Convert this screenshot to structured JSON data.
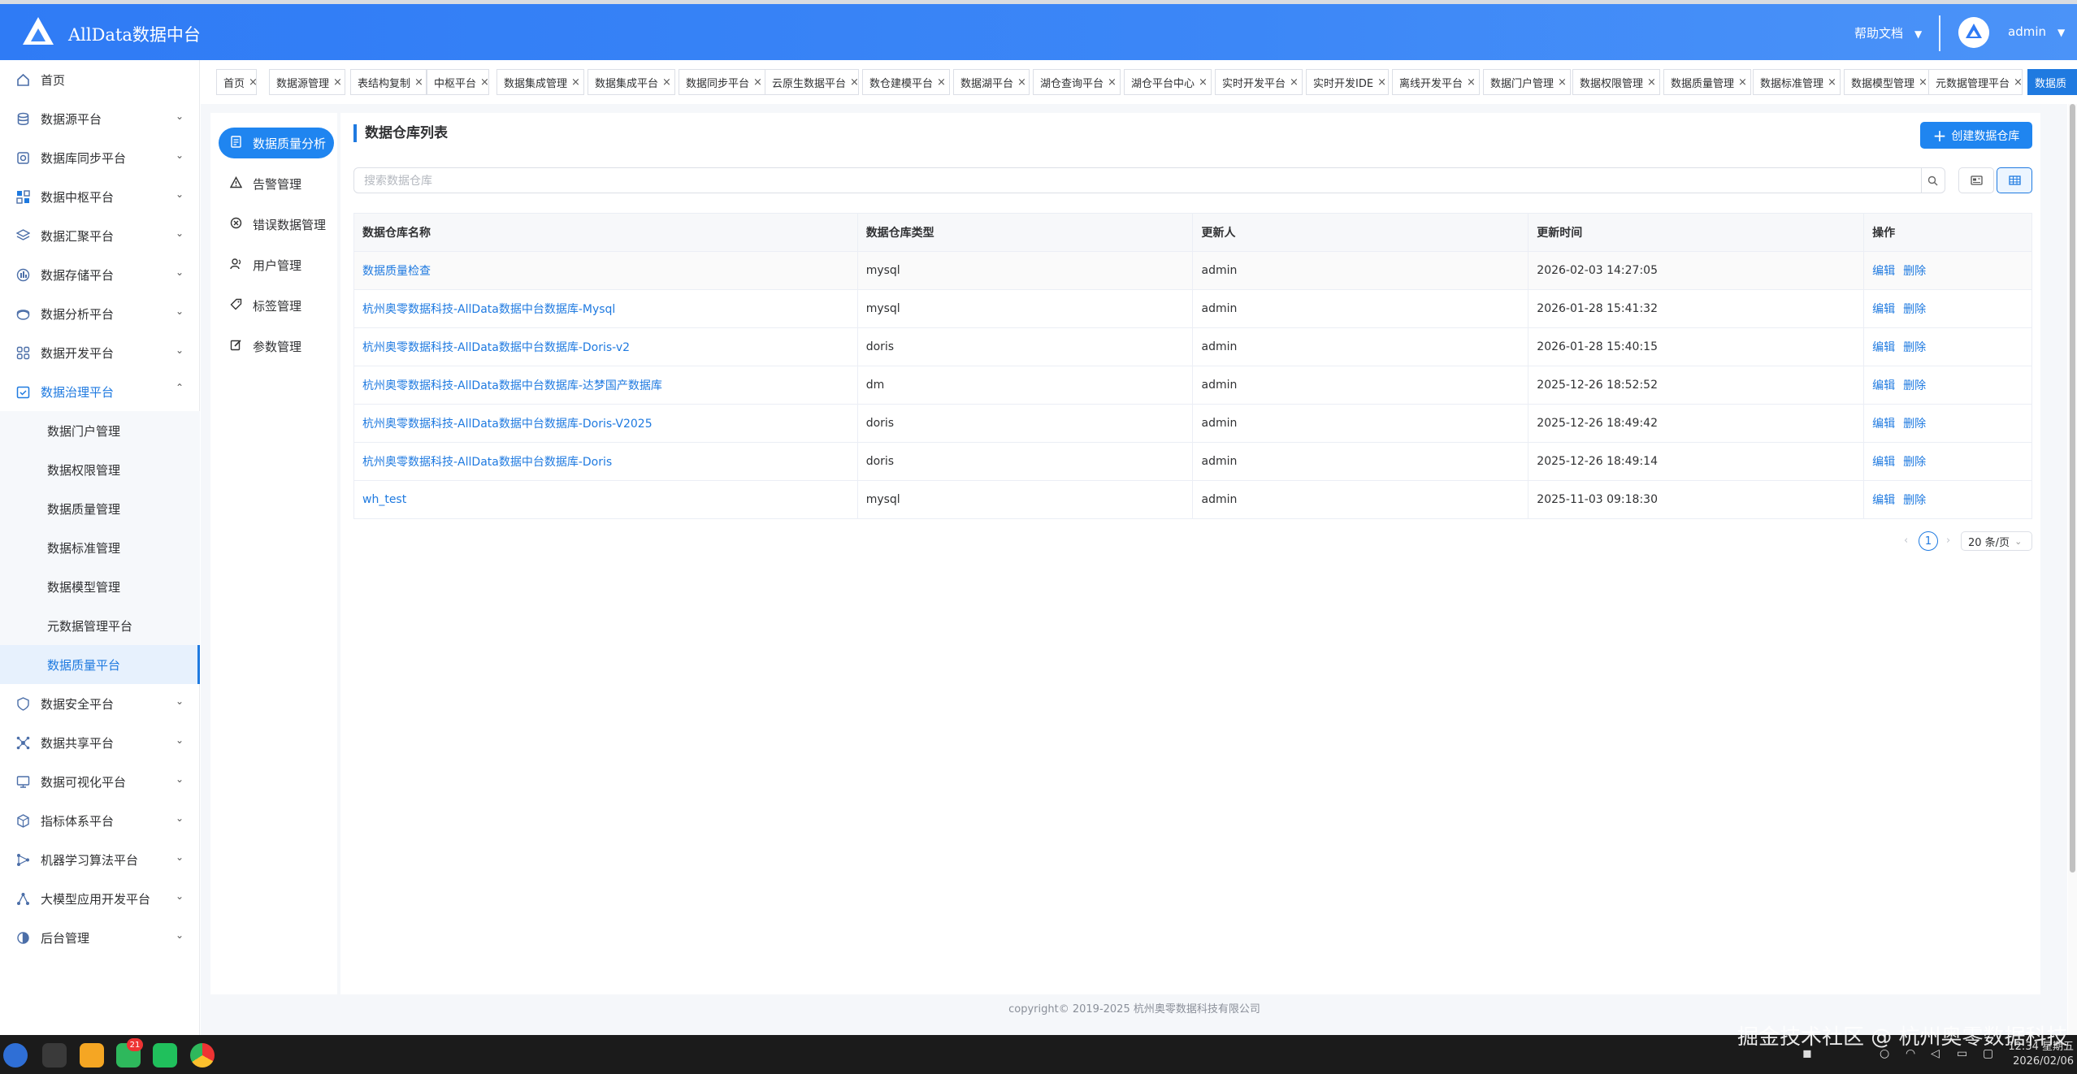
{
  "app": {
    "title": "AllData数据中台"
  },
  "header": {
    "help": "帮助文档",
    "user": "admin",
    "caret": "▼"
  },
  "sidebar": {
    "items": [
      {
        "label": "首页",
        "icon": "home-icon"
      },
      {
        "label": "数据源平台",
        "icon": "database-icon"
      },
      {
        "label": "数据库同步平台",
        "icon": "sync-icon"
      },
      {
        "label": "数据中枢平台",
        "icon": "hub-icon"
      },
      {
        "label": "数据汇聚平台",
        "icon": "layers-icon"
      },
      {
        "label": "数据存储平台",
        "icon": "storage-icon"
      },
      {
        "label": "数据分析平台",
        "icon": "analysis-icon"
      },
      {
        "label": "数据开发平台",
        "icon": "grid-icon"
      },
      {
        "label": "数据治理平台",
        "icon": "calendar-check-icon"
      }
    ],
    "sub_items": [
      {
        "label": "数据门户管理"
      },
      {
        "label": "数据权限管理"
      },
      {
        "label": "数据质量管理"
      },
      {
        "label": "数据标准管理"
      },
      {
        "label": "数据模型管理"
      },
      {
        "label": "元数据管理平台"
      },
      {
        "label": "数据质量平台"
      }
    ],
    "items_after": [
      {
        "label": "数据安全平台",
        "icon": "shield-icon"
      },
      {
        "label": "数据共享平台",
        "icon": "share-icon"
      },
      {
        "label": "数据可视化平台",
        "icon": "monitor-icon"
      },
      {
        "label": "指标体系平台",
        "icon": "cube-icon"
      },
      {
        "label": "机器学习算法平台",
        "icon": "ml-icon"
      },
      {
        "label": "大模型应用开发平台",
        "icon": "llm-icon"
      },
      {
        "label": "后台管理",
        "icon": "admin-icon"
      }
    ]
  },
  "tabs": [
    {
      "label": "首页"
    },
    {
      "label": "数据源管理"
    },
    {
      "label": "表结构复制"
    },
    {
      "label": "中枢平台"
    },
    {
      "label": "数据集成管理"
    },
    {
      "label": "数据集成平台"
    },
    {
      "label": "数据同步平台"
    },
    {
      "label": "云原生数据平台"
    },
    {
      "label": "数仓建模平台"
    },
    {
      "label": "数据湖平台"
    },
    {
      "label": "湖仓查询平台"
    },
    {
      "label": "湖仓平台中心"
    },
    {
      "label": "实时开发平台"
    },
    {
      "label": "实时开发IDE"
    },
    {
      "label": "离线开发平台"
    },
    {
      "label": "数据门户管理"
    },
    {
      "label": "数据权限管理"
    },
    {
      "label": "数据质量管理"
    },
    {
      "label": "数据标准管理"
    },
    {
      "label": "数据模型管理"
    },
    {
      "label": "元数据管理平台"
    },
    {
      "label": "数据质"
    }
  ],
  "subnav": [
    {
      "label": "数据质量分析",
      "icon": "report-icon"
    },
    {
      "label": "告警管理",
      "icon": "warning-icon"
    },
    {
      "label": "错误数据管理",
      "icon": "error-circle-icon"
    },
    {
      "label": "用户管理",
      "icon": "user-icon"
    },
    {
      "label": "标签管理",
      "icon": "tag-icon"
    },
    {
      "label": "参数管理",
      "icon": "edit-icon"
    }
  ],
  "main": {
    "title": "数据仓库列表",
    "create_label": "创建数据仓库",
    "search_placeholder": "搜索数据仓库"
  },
  "table": {
    "columns": [
      "数据仓库名称",
      "数据仓库类型",
      "更新人",
      "更新时间",
      "操作"
    ],
    "rows": [
      {
        "name": "数据质量检查",
        "type": "mysql",
        "user": "admin",
        "time": "2026-02-03 14:27:05"
      },
      {
        "name": "杭州奥零数据科技-AllData数据中台数据库-Mysql",
        "type": "mysql",
        "user": "admin",
        "time": "2026-01-28 15:41:32"
      },
      {
        "name": "杭州奥零数据科技-AllData数据中台数据库-Doris-v2",
        "type": "doris",
        "user": "admin",
        "time": "2026-01-28 15:40:15"
      },
      {
        "name": "杭州奥零数据科技-AllData数据中台数据库-达梦国产数据库",
        "type": "dm",
        "user": "admin",
        "time": "2025-12-26 18:52:52"
      },
      {
        "name": "杭州奥零数据科技-AllData数据中台数据库-Doris-V2025",
        "type": "doris",
        "user": "admin",
        "time": "2025-12-26 18:49:42"
      },
      {
        "name": "杭州奥零数据科技-AllData数据中台数据库-Doris",
        "type": "doris",
        "user": "admin",
        "time": "2025-12-26 18:49:14"
      },
      {
        "name": "wh_test",
        "type": "mysql",
        "user": "admin",
        "time": "2025-11-03 09:18:30"
      }
    ],
    "edit_label": "编辑",
    "delete_label": "删除"
  },
  "pagination": {
    "current": "1",
    "page_size": "20 条/页"
  },
  "footer": {
    "copyright": "copyright© 2019-2025 杭州奥零数据科技有限公司"
  },
  "taskbar": {
    "badge": "21",
    "watermark": "掘金技术社区 @ 杭州奥零数据科技",
    "time": "12:34 星期五",
    "date": "2026/02/06"
  },
  "colors": {
    "brand": "#1f7ae0",
    "header": "#2f7bf5"
  }
}
